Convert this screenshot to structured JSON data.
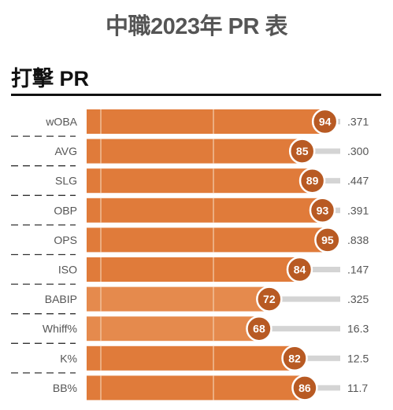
{
  "page": {
    "title": "中職2023年 PR 表",
    "section": "打擊 PR"
  },
  "colors": {
    "bar": "#e07b3a",
    "bar_light": "#e58a4d",
    "badge": "#b85a23",
    "track": "#d4d4d4",
    "grid": "#f3c8a6"
  },
  "chart_data": {
    "type": "bar",
    "orientation": "horizontal",
    "categories": [
      "wOBA",
      "AVG",
      "SLG",
      "OBP",
      "OPS",
      "ISO",
      "BABIP",
      "Whiff%",
      "K%",
      "BB%"
    ],
    "values": [
      94,
      85,
      89,
      93,
      95,
      84,
      72,
      68,
      82,
      86
    ],
    "stat_values": [
      ".371",
      ".300",
      ".447",
      ".391",
      ".838",
      ".147",
      ".325",
      "16.3",
      "12.5",
      "11.7"
    ],
    "xlim": [
      0,
      100
    ],
    "gridlines": [
      50
    ]
  }
}
